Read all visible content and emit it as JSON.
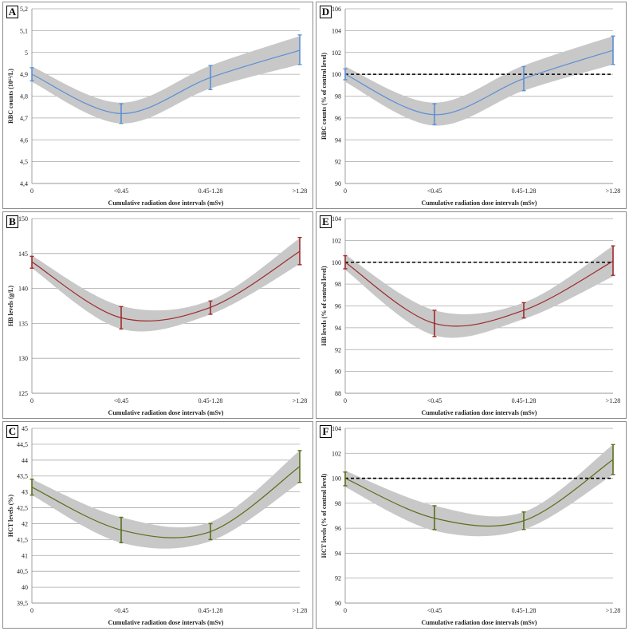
{
  "chart_data": [
    {
      "panel": "A",
      "type": "line",
      "categories": [
        "0",
        "<0.45",
        "0.45-1.28",
        ">1.28"
      ],
      "series": [
        {
          "name": "RBC counts",
          "values": [
            4.9,
            4.72,
            4.885,
            5.01
          ],
          "err_low": [
            4.87,
            4.675,
            4.83,
            4.945
          ],
          "err_high": [
            4.93,
            4.765,
            4.94,
            5.08
          ]
        }
      ],
      "band_low": [
        4.865,
        4.675,
        4.835,
        4.945
      ],
      "band_high": [
        4.935,
        4.77,
        4.94,
        5.075
      ],
      "reference": null,
      "ylim": [
        4.4,
        5.2
      ],
      "yticks": [
        "4,4",
        "4,5",
        "4,6",
        "4,7",
        "4,8",
        "4,9",
        "5",
        "5,1",
        "5,2"
      ],
      "ylabel": "RBC counts (10¹²/L)",
      "xlabel": "Cumulative radiation dose intervals (mSv)",
      "color": "#5b8fd6"
    },
    {
      "panel": "D",
      "type": "line",
      "categories": [
        "0",
        "<0.45",
        "0.45-1.28",
        ">1.28"
      ],
      "series": [
        {
          "name": "RBC counts % control",
          "values": [
            100,
            96.3,
            99.6,
            102.2
          ],
          "err_low": [
            99.5,
            95.4,
            98.5,
            100.9
          ],
          "err_high": [
            100.5,
            97.3,
            100.7,
            103.5
          ]
        }
      ],
      "band_low": [
        99.3,
        95.3,
        98.5,
        100.9
      ],
      "band_high": [
        100.7,
        97.4,
        100.8,
        103.5
      ],
      "reference": 100,
      "ylim": [
        90,
        106
      ],
      "yticks": [
        "90",
        "92",
        "94",
        "96",
        "98",
        "100",
        "102",
        "104",
        "106"
      ],
      "ylabel": "RBC counts (% of control level)",
      "xlabel": "Cumulative radiation dose intervals (mSv)",
      "color": "#5b8fd6"
    },
    {
      "panel": "B",
      "type": "line",
      "categories": [
        "0",
        "<0.45",
        "0.45-1.28",
        ">1.28"
      ],
      "series": [
        {
          "name": "HB levels",
          "values": [
            143.8,
            135.8,
            137.3,
            145.3
          ],
          "err_low": [
            142.9,
            134.2,
            136.3,
            143.4
          ],
          "err_high": [
            144.6,
            137.4,
            138.2,
            147.3
          ]
        }
      ],
      "band_low": [
        142.9,
        134.2,
        136.3,
        143.5
      ],
      "band_high": [
        144.7,
        137.5,
        138.3,
        147.2
      ],
      "reference": null,
      "ylim": [
        125,
        150
      ],
      "yticks": [
        "125",
        "130",
        "135",
        "140",
        "145",
        "150"
      ],
      "ylabel": "HB levels (g/L)",
      "xlabel": "Cumulative radiation dose intervals (mSv)",
      "color": "#9e2a2b"
    },
    {
      "panel": "E",
      "type": "line",
      "categories": [
        "0",
        "<0.45",
        "0.45-1.28",
        ">1.28"
      ],
      "series": [
        {
          "name": "HB levels % control",
          "values": [
            100,
            94.4,
            95.6,
            100.1
          ],
          "err_low": [
            99.4,
            93.2,
            94.9,
            98.8
          ],
          "err_high": [
            100.6,
            95.6,
            96.3,
            101.5
          ]
        }
      ],
      "band_low": [
        99.3,
        93.3,
        94.8,
        98.7
      ],
      "band_high": [
        100.7,
        95.6,
        96.3,
        101.5
      ],
      "reference": 100,
      "ylim": [
        88,
        104
      ],
      "yticks": [
        "88",
        "90",
        "92",
        "94",
        "96",
        "98",
        "100",
        "102",
        "104"
      ],
      "ylabel": "HB levels (% of control level)",
      "xlabel": "Cumulative radiation dose intervals (mSv)",
      "color": "#9e2a2b"
    },
    {
      "panel": "C",
      "type": "line",
      "categories": [
        "0",
        "<0.45",
        "0.45-1.28",
        ">1.28"
      ],
      "series": [
        {
          "name": "HCT levels",
          "values": [
            43.15,
            41.8,
            41.75,
            43.8
          ],
          "err_low": [
            42.9,
            41.4,
            41.5,
            43.3
          ],
          "err_high": [
            43.4,
            42.2,
            42.0,
            44.3
          ]
        }
      ],
      "band_low": [
        42.9,
        41.4,
        41.45,
        43.3
      ],
      "band_high": [
        43.4,
        42.2,
        42.05,
        44.3
      ],
      "reference": null,
      "ylim": [
        39.5,
        45
      ],
      "yticks": [
        "39,5",
        "40",
        "40,5",
        "41",
        "41,5",
        "42",
        "42,5",
        "43",
        "43,5",
        "44",
        "44,5",
        "45"
      ],
      "ylabel": "HCT levels (%)",
      "xlabel": "Cumulative radiation dose intervals (mSv)",
      "color": "#5a6f1c"
    },
    {
      "panel": "F",
      "type": "line",
      "categories": [
        "0",
        "<0.45",
        "0.45-1.28",
        ">1.28"
      ],
      "series": [
        {
          "name": "HCT levels % control",
          "values": [
            100,
            96.8,
            96.6,
            101.5
          ],
          "err_low": [
            99.4,
            95.9,
            95.9,
            100.3
          ],
          "err_high": [
            100.5,
            97.8,
            97.3,
            102.7
          ]
        }
      ],
      "band_low": [
        99.3,
        95.8,
        95.9,
        100.3
      ],
      "band_high": [
        100.6,
        97.8,
        97.3,
        102.7
      ],
      "reference": 100,
      "ylim": [
        90,
        104
      ],
      "yticks": [
        "90",
        "92",
        "94",
        "96",
        "98",
        "100",
        "102",
        "104"
      ],
      "ylabel": "HCT levels (% of control level)",
      "xlabel": "Cumulative radiation dose intervals (mSv)",
      "color": "#5a6f1c"
    }
  ]
}
